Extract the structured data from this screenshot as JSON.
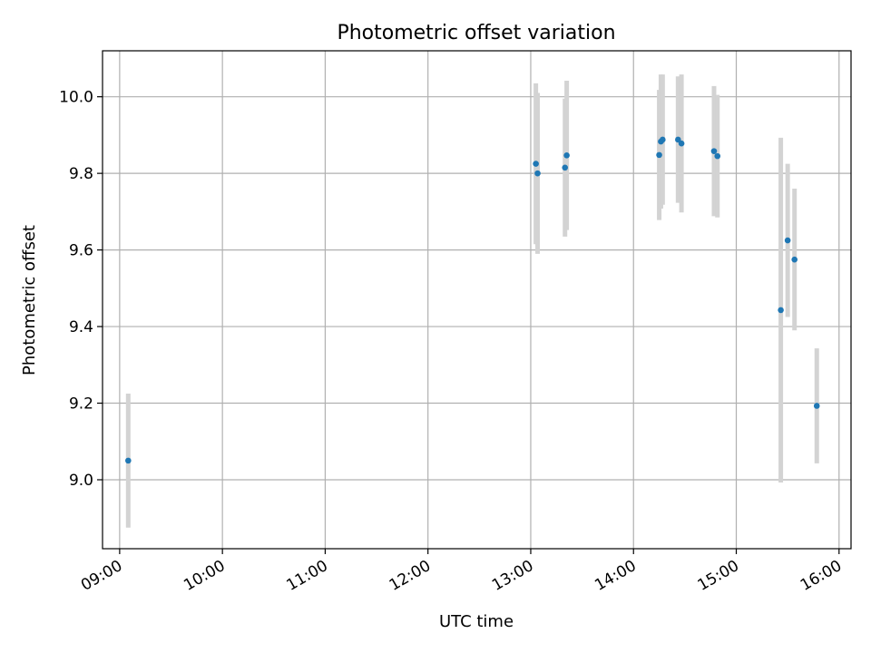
{
  "chart_data": {
    "type": "scatter",
    "title": "Photometric offset variation",
    "xlabel": "UTC time",
    "ylabel": "Photometric offset",
    "x_axis_kind": "time",
    "xlim": [
      "08:50",
      "16:07"
    ],
    "ylim": [
      8.82,
      10.12
    ],
    "x_ticks": [
      "09:00",
      "10:00",
      "11:00",
      "12:00",
      "13:00",
      "14:00",
      "15:00",
      "16:00"
    ],
    "y_ticks": [
      9.0,
      9.2,
      9.4,
      9.6,
      9.8,
      10.0
    ],
    "y_tick_labels": [
      "9.0",
      "9.2",
      "9.4",
      "9.6",
      "9.8",
      "10.0"
    ],
    "grid": true,
    "series": [
      {
        "marker_color": "#1f77b4",
        "errorbar_color": "#d3d3d3",
        "points": [
          {
            "x": "09:05",
            "y": 9.05,
            "err": 0.175
          },
          {
            "x": "13:03",
            "y": 9.825,
            "err": 0.21
          },
          {
            "x": "13:04",
            "y": 9.8,
            "err": 0.21
          },
          {
            "x": "13:20",
            "y": 9.815,
            "err": 0.18
          },
          {
            "x": "13:21",
            "y": 9.847,
            "err": 0.195
          },
          {
            "x": "14:15",
            "y": 9.848,
            "err": 0.17
          },
          {
            "x": "14:16",
            "y": 9.883,
            "err": 0.175
          },
          {
            "x": "14:17",
            "y": 9.888,
            "err": 0.17
          },
          {
            "x": "14:26",
            "y": 9.888,
            "err": 0.165
          },
          {
            "x": "14:28",
            "y": 9.878,
            "err": 0.18
          },
          {
            "x": "14:47",
            "y": 9.858,
            "err": 0.17
          },
          {
            "x": "14:49",
            "y": 9.845,
            "err": 0.16
          },
          {
            "x": "15:26",
            "y": 9.443,
            "err": 0.45
          },
          {
            "x": "15:30",
            "y": 9.625,
            "err": 0.2
          },
          {
            "x": "15:34",
            "y": 9.575,
            "err": 0.185
          },
          {
            "x": "15:47",
            "y": 9.193,
            "err": 0.15
          }
        ]
      }
    ]
  }
}
